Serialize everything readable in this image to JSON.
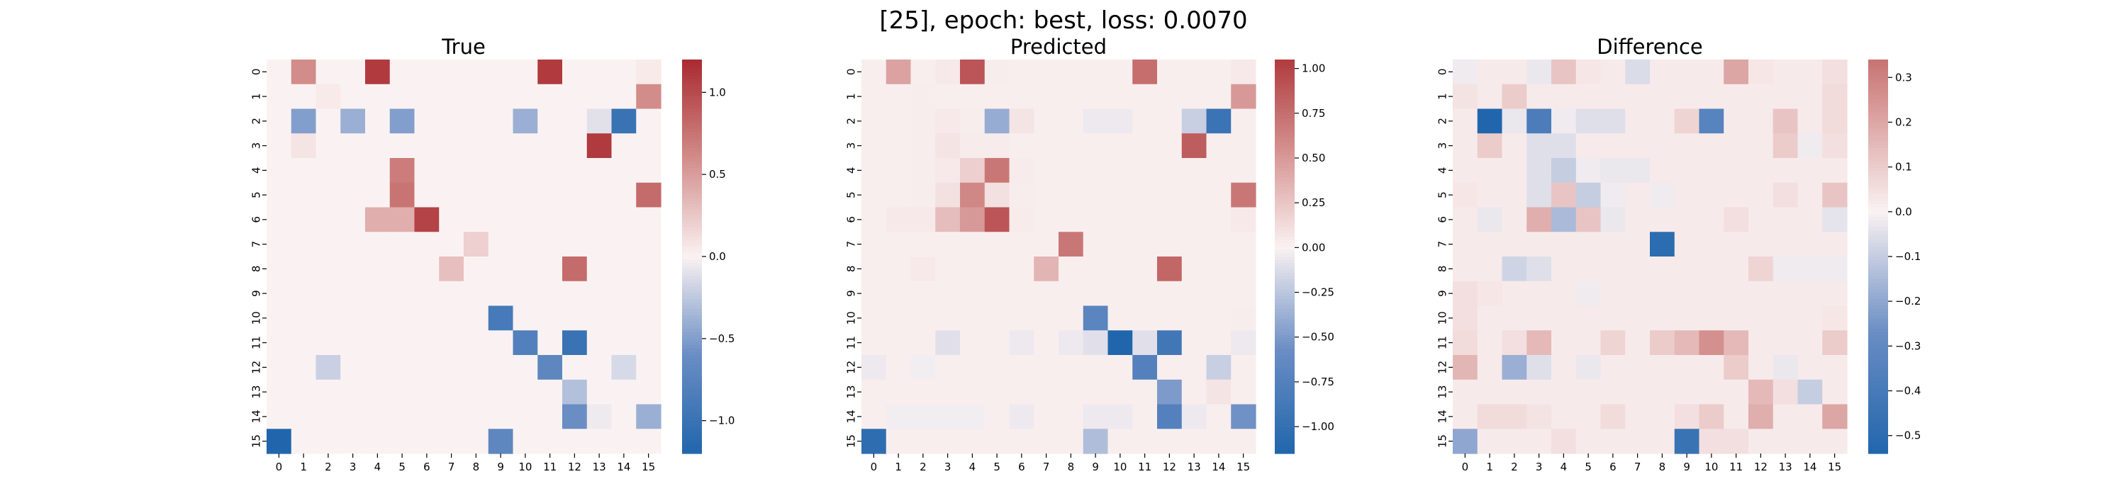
{
  "figure": {
    "suptitle": "[25], epoch: best, loss: 0.0070"
  },
  "chart_data": [
    {
      "type": "heatmap",
      "title": "True",
      "colormap": "vlag",
      "vlim": [
        -1.2,
        1.2
      ],
      "colorbar_ticks": [
        -1.0,
        -0.5,
        0.0,
        0.5,
        1.0
      ],
      "colorbar_tick_labels": [
        "−1.0",
        "−0.5",
        "0.0",
        "0.5",
        "1.0"
      ],
      "x_tick_labels": [
        "0",
        "1",
        "2",
        "3",
        "4",
        "5",
        "6",
        "7",
        "8",
        "9",
        "10",
        "11",
        "12",
        "13",
        "14",
        "15"
      ],
      "y_tick_labels": [
        "0",
        "1",
        "2",
        "3",
        "4",
        "5",
        "6",
        "7",
        "8",
        "9",
        "10",
        "11",
        "12",
        "13",
        "14",
        "15"
      ],
      "values": [
        [
          0,
          0.6,
          0,
          0,
          1.1,
          0,
          0,
          0,
          0,
          0,
          0,
          1.1,
          0,
          0,
          0,
          0.05
        ],
        [
          0,
          0,
          0.05,
          0,
          0,
          0,
          0,
          0,
          0,
          0,
          0,
          0,
          0,
          0,
          0,
          0.6
        ],
        [
          0,
          -0.5,
          0,
          -0.4,
          0,
          -0.5,
          0,
          0,
          0,
          0,
          -0.4,
          0,
          0,
          -0.1,
          -1.0,
          0
        ],
        [
          0,
          0.08,
          0,
          0,
          0,
          0,
          0,
          0,
          0,
          0,
          0,
          0,
          0,
          1.1,
          0,
          0
        ],
        [
          0,
          0,
          0,
          0,
          0,
          0.7,
          0,
          0,
          0,
          0,
          0,
          0,
          0,
          0,
          0,
          0
        ],
        [
          0,
          0,
          0,
          0,
          0,
          0.75,
          0,
          0,
          0,
          0,
          0,
          0,
          0,
          0,
          0,
          0.8
        ],
        [
          0,
          0,
          0,
          0,
          0.4,
          0.4,
          1.05,
          0,
          0,
          0,
          0,
          0,
          0,
          0,
          0,
          0
        ],
        [
          0,
          0,
          0,
          0,
          0,
          0,
          0,
          0,
          0.2,
          0,
          0,
          0,
          0,
          0,
          0,
          0
        ],
        [
          0,
          0,
          0,
          0,
          0,
          0,
          0,
          0.3,
          0,
          0,
          0,
          0,
          0.8,
          0,
          0,
          0
        ],
        [
          0,
          0,
          0,
          0,
          0,
          0,
          0,
          0,
          0,
          0,
          0,
          0,
          0,
          0,
          0,
          0
        ],
        [
          0,
          0,
          0,
          0,
          0,
          0,
          0,
          0,
          0,
          -0.9,
          0,
          0,
          0,
          0,
          0,
          0
        ],
        [
          0,
          0,
          0,
          0,
          0,
          0,
          0,
          0,
          0,
          0,
          -0.8,
          0,
          -1.0,
          0,
          0,
          0
        ],
        [
          0,
          0,
          -0.2,
          0,
          0,
          0,
          0,
          0,
          0,
          0,
          0,
          -0.7,
          0,
          0,
          -0.15,
          0
        ],
        [
          0,
          0,
          0,
          0,
          0,
          0,
          0,
          0,
          0,
          0,
          0,
          0,
          -0.3,
          0,
          0,
          0
        ],
        [
          0,
          0,
          0,
          0,
          0,
          0,
          0,
          0,
          0,
          0,
          0,
          0,
          -0.6,
          -0.05,
          0,
          -0.4
        ],
        [
          -1.2,
          0,
          0,
          0,
          0,
          0,
          0,
          0,
          0,
          -0.7,
          0,
          0,
          0,
          0,
          0,
          0
        ]
      ]
    },
    {
      "type": "heatmap",
      "title": "Predicted",
      "colormap": "vlag",
      "vlim": [
        -1.15,
        1.05
      ],
      "colorbar_ticks": [
        -1.0,
        -0.75,
        -0.5,
        -0.25,
        0.0,
        0.25,
        0.5,
        0.75,
        1.0
      ],
      "colorbar_tick_labels": [
        "−1.00",
        "−0.75",
        "−0.50",
        "−0.25",
        "0.00",
        "0.25",
        "0.50",
        "0.75",
        "1.00"
      ],
      "x_tick_labels": [
        "0",
        "1",
        "2",
        "3",
        "4",
        "5",
        "6",
        "7",
        "8",
        "9",
        "10",
        "11",
        "12",
        "13",
        "14",
        "15"
      ],
      "y_tick_labels": [
        "0",
        "1",
        "2",
        "3",
        "4",
        "5",
        "6",
        "7",
        "8",
        "9",
        "10",
        "11",
        "12",
        "13",
        "14",
        "15"
      ],
      "values": [
        [
          0.02,
          0.45,
          0.02,
          0.05,
          0.9,
          0.03,
          0.02,
          0.02,
          0.02,
          0.02,
          0.02,
          0.75,
          0.02,
          0.02,
          0.02,
          0.05
        ],
        [
          0.02,
          0.02,
          0.03,
          0.02,
          0.02,
          0.02,
          0.02,
          0.02,
          0.02,
          0.02,
          0.02,
          0.02,
          0.02,
          0.02,
          0.02,
          0.5
        ],
        [
          0.02,
          0.02,
          0.03,
          0.05,
          0.03,
          -0.4,
          0.08,
          0.02,
          0.02,
          -0.05,
          -0.05,
          0.02,
          0.02,
          -0.2,
          -0.95,
          0.02
        ],
        [
          0.02,
          0.02,
          0.03,
          0.08,
          0.04,
          0.04,
          0.02,
          0.02,
          0.02,
          0.02,
          0.02,
          0.02,
          0.02,
          0.85,
          0.02,
          0.02
        ],
        [
          0.02,
          0.02,
          0.03,
          0.05,
          0.2,
          0.7,
          0.04,
          0.02,
          0.02,
          0.02,
          0.02,
          0.02,
          0.02,
          0.02,
          0.02,
          0.02
        ],
        [
          0.02,
          0.02,
          0.03,
          0.1,
          0.6,
          0.1,
          0.03,
          0.02,
          0.02,
          0.02,
          0.02,
          0.02,
          0.02,
          0.02,
          0.02,
          0.7
        ],
        [
          0.02,
          0.05,
          0.05,
          0.3,
          0.5,
          0.9,
          0.04,
          0.02,
          0.02,
          0.02,
          0.02,
          0.02,
          0.02,
          0.02,
          0.02,
          0.05
        ],
        [
          0.02,
          0.02,
          0.02,
          0.02,
          0.02,
          0.02,
          0.02,
          0.02,
          0.7,
          0.02,
          0.02,
          0.02,
          0.02,
          0.02,
          0.02,
          0.02
        ],
        [
          0.02,
          0.02,
          0.05,
          0.02,
          0.02,
          0.02,
          0.02,
          0.35,
          0.02,
          0.02,
          0.02,
          0.02,
          0.8,
          0.02,
          0.02,
          0.02
        ],
        [
          0.02,
          0.02,
          0.02,
          0.02,
          0.02,
          0.02,
          0.02,
          0.02,
          0.02,
          0.02,
          0.02,
          0.02,
          0.02,
          0.02,
          0.02,
          0.02
        ],
        [
          0.02,
          0.02,
          0.02,
          0.02,
          0.02,
          0.02,
          0.02,
          0.02,
          0.02,
          -0.7,
          0.02,
          0.02,
          0.02,
          0.02,
          0.02,
          0.03
        ],
        [
          0.02,
          0.02,
          0.02,
          -0.1,
          0.02,
          0.02,
          -0.05,
          0.02,
          -0.05,
          -0.1,
          -1.15,
          -0.1,
          -0.9,
          0.02,
          0.02,
          -0.05
        ],
        [
          -0.05,
          0.02,
          -0.03,
          0.02,
          0.02,
          0.02,
          0.02,
          0.02,
          0.02,
          0.02,
          0.02,
          -0.75,
          0.02,
          0.02,
          -0.2,
          0.02
        ],
        [
          0.02,
          0.02,
          0.02,
          0.02,
          0.02,
          0.02,
          0.02,
          0.02,
          0.02,
          0.02,
          0.02,
          0.02,
          -0.5,
          0.02,
          0.08,
          0.02
        ],
        [
          0.02,
          -0.03,
          -0.03,
          -0.03,
          -0.03,
          0.02,
          -0.05,
          0.02,
          0.02,
          -0.05,
          -0.05,
          0.02,
          -0.75,
          -0.05,
          0.02,
          -0.55
        ],
        [
          -1.05,
          0.02,
          0.02,
          0.02,
          0.02,
          0.02,
          0.02,
          0.02,
          0.02,
          -0.3,
          0.02,
          0.02,
          0.02,
          0.02,
          0.02,
          0.02
        ]
      ]
    },
    {
      "type": "heatmap",
      "title": "Difference",
      "colormap": "vlag",
      "vlim": [
        -0.54,
        0.34
      ],
      "colorbar_ticks": [
        -0.5,
        -0.4,
        -0.3,
        -0.2,
        -0.1,
        0.0,
        0.1,
        0.2,
        0.3
      ],
      "colorbar_tick_labels": [
        "−0.5",
        "−0.4",
        "−0.3",
        "−0.2",
        "−0.1",
        "0.0",
        "0.1",
        "0.2",
        "0.3"
      ],
      "x_tick_labels": [
        "0",
        "1",
        "2",
        "3",
        "4",
        "5",
        "6",
        "7",
        "8",
        "9",
        "10",
        "11",
        "12",
        "13",
        "14",
        "15"
      ],
      "y_tick_labels": [
        "0",
        "1",
        "2",
        "3",
        "4",
        "5",
        "6",
        "7",
        "8",
        "9",
        "10",
        "11",
        "12",
        "13",
        "14",
        "15"
      ],
      "values": [
        [
          -0.02,
          0.02,
          0.02,
          -0.03,
          0.12,
          0.03,
          0.02,
          -0.06,
          0.02,
          0.02,
          0.02,
          0.2,
          0.03,
          0.02,
          0.02,
          0.05
        ],
        [
          0.04,
          0.02,
          0.1,
          0.02,
          0.02,
          0.02,
          0.02,
          0.02,
          0.02,
          0.02,
          0.02,
          0.02,
          0.02,
          0.02,
          0.02,
          0.06
        ],
        [
          0.02,
          -0.54,
          -0.03,
          -0.38,
          -0.02,
          -0.05,
          -0.05,
          0.02,
          0.02,
          0.08,
          -0.34,
          0.02,
          0.02,
          0.12,
          0.02,
          0.06
        ],
        [
          0.02,
          0.1,
          0.02,
          -0.05,
          -0.05,
          0.02,
          0.02,
          0.02,
          0.02,
          0.02,
          0.02,
          0.02,
          0.02,
          0.1,
          -0.02,
          0.05
        ],
        [
          0.02,
          0.02,
          0.02,
          -0.05,
          -0.1,
          -0.02,
          -0.03,
          -0.03,
          0.02,
          0.02,
          0.02,
          0.02,
          0.02,
          0.02,
          0.02,
          0.02
        ],
        [
          0.03,
          0.02,
          0.02,
          -0.05,
          0.12,
          -0.1,
          -0.02,
          0.02,
          -0.02,
          0.02,
          0.02,
          0.02,
          0.02,
          0.05,
          0.02,
          0.12
        ],
        [
          0.02,
          -0.03,
          0.02,
          0.18,
          -0.15,
          0.12,
          -0.03,
          0.02,
          0.02,
          0.02,
          0.02,
          0.05,
          0.02,
          0.02,
          0.02,
          -0.04
        ],
        [
          0.02,
          0.02,
          0.02,
          0.02,
          0.02,
          0.02,
          0.02,
          0.02,
          -0.5,
          0.02,
          0.02,
          0.02,
          0.02,
          0.02,
          0.02,
          0.02
        ],
        [
          0.02,
          0.02,
          -0.08,
          -0.05,
          0.02,
          0.02,
          0.02,
          0.02,
          0.02,
          0.02,
          0.02,
          0.02,
          0.08,
          -0.02,
          -0.02,
          -0.02
        ],
        [
          0.05,
          0.03,
          0.02,
          0.02,
          0.02,
          -0.02,
          0.02,
          0.02,
          0.02,
          0.02,
          0.02,
          0.02,
          0.02,
          0.02,
          0.02,
          0.02
        ],
        [
          0.05,
          0.02,
          0.02,
          0.02,
          0.02,
          0.02,
          0.02,
          0.02,
          0.02,
          0.02,
          0.02,
          0.02,
          0.02,
          0.02,
          0.02,
          0.03
        ],
        [
          0.06,
          0.02,
          0.05,
          0.15,
          0.02,
          0.02,
          0.08,
          0.02,
          0.1,
          0.15,
          0.26,
          0.15,
          0.02,
          0.02,
          0.02,
          0.1
        ],
        [
          0.16,
          0.02,
          -0.18,
          -0.05,
          0.02,
          -0.03,
          0.02,
          0.02,
          0.02,
          0.02,
          0.02,
          0.1,
          0.02,
          -0.03,
          0.02,
          0.02
        ],
        [
          0.02,
          0.02,
          0.02,
          0.02,
          0.02,
          0.02,
          0.02,
          0.02,
          0.02,
          0.02,
          0.02,
          0.02,
          0.15,
          0.05,
          -0.1,
          0.02
        ],
        [
          0.02,
          0.06,
          0.06,
          0.04,
          0.02,
          0.02,
          0.06,
          0.02,
          0.02,
          0.05,
          0.1,
          0.02,
          0.18,
          0.02,
          0.02,
          0.2
        ],
        [
          -0.2,
          0.02,
          0.02,
          0.02,
          0.05,
          0.02,
          0.02,
          0.02,
          0.02,
          -0.45,
          0.05,
          0.05,
          0.02,
          0.02,
          0.02,
          0.02
        ]
      ]
    }
  ]
}
